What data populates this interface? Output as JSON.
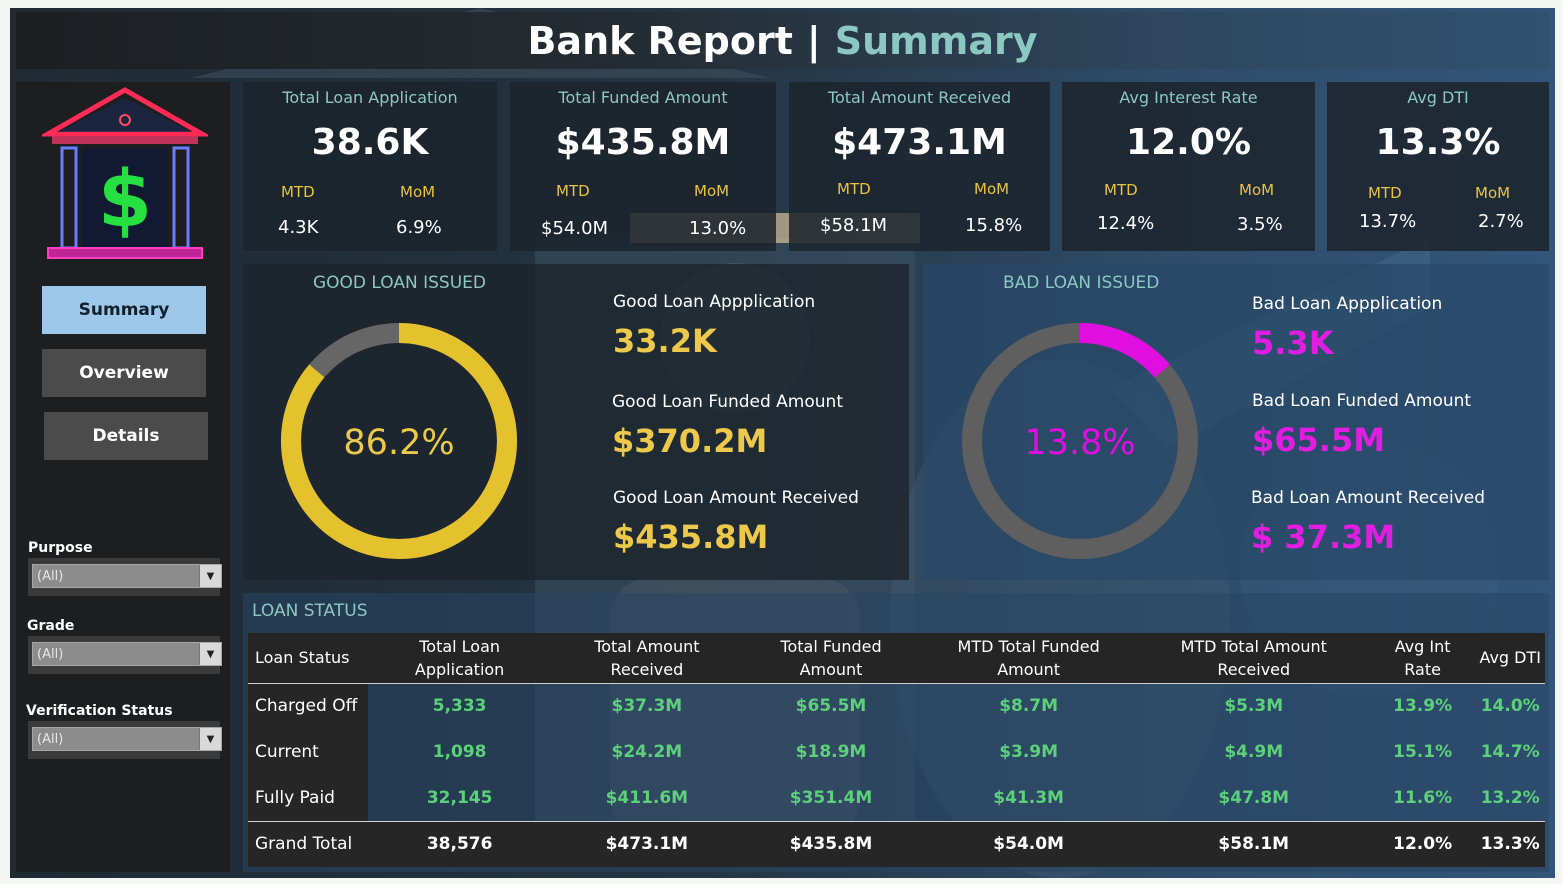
{
  "header": {
    "title": "Bank Report",
    "separator": "|",
    "subtitle": "Summary"
  },
  "sidebar": {
    "logo_icon": "bank-dollar-icon",
    "nav": [
      {
        "label": "Summary",
        "active": true
      },
      {
        "label": "Overview",
        "active": false
      },
      {
        "label": "Details",
        "active": false
      }
    ],
    "filters": [
      {
        "label": "Purpose",
        "value": "(All)"
      },
      {
        "label": "Grade",
        "value": "(All)"
      },
      {
        "label": "Verification Status",
        "value": "(All)"
      }
    ]
  },
  "kpis": [
    {
      "title": "Total Loan Application",
      "value": "38.6K",
      "mtd_label": "MTD",
      "mom_label": "MoM",
      "mtd": "4.3K",
      "mom": "6.9%"
    },
    {
      "title": "Total Funded Amount",
      "value": "$435.8M",
      "mtd_label": "MTD",
      "mom_label": "MoM",
      "mtd": "$54.0M",
      "mom": "13.0%"
    },
    {
      "title": "Total Amount Received",
      "value": "$473.1M",
      "mtd_label": "MTD",
      "mom_label": "MoM",
      "mtd": "$58.1M",
      "mom": "15.8%"
    },
    {
      "title": "Avg Interest Rate",
      "value": "12.0%",
      "mtd_label": "MTD",
      "mom_label": "MoM",
      "mtd": "12.4%",
      "mom": "3.5%"
    },
    {
      "title": "Avg DTI",
      "value": "13.3%",
      "mtd_label": "MTD",
      "mom_label": "MoM",
      "mtd": "13.7%",
      "mom": "2.7%"
    }
  ],
  "good_loan": {
    "title": "GOOD LOAN ISSUED",
    "percent_label": "86.2%",
    "percent": 86.2,
    "application_label": "Good Loan Appplication",
    "application": "33.2K",
    "funded_label": "Good Loan Funded Amount",
    "funded": "$370.2M",
    "received_label": "Good Loan Amount Received",
    "received": "$435.8M",
    "color": "#e4c22e"
  },
  "bad_loan": {
    "title": "BAD LOAN ISSUED",
    "percent_label": "13.8%",
    "percent": 13.8,
    "application_label": "Bad Loan Appplication",
    "application": "5.3K",
    "funded_label": "Bad Loan Funded Amount",
    "funded": "$65.5M",
    "received_label": "Bad Loan Amount Received",
    "received": "$ 37.3M",
    "color": "#e00ee0"
  },
  "loan_status": {
    "title": "LOAN STATUS",
    "columns": [
      "Loan Status",
      "Total Loan Application",
      "Total Amount Received",
      "Total Funded Amount",
      "MTD Total Funded Amount",
      "MTD Total Amount Received",
      "Avg Int Rate",
      "Avg DTI"
    ],
    "rows": [
      [
        "Charged Off",
        "5,333",
        "$37.3M",
        "$65.5M",
        "$8.7M",
        "$5.3M",
        "13.9%",
        "14.0%"
      ],
      [
        "Current",
        "1,098",
        "$24.2M",
        "$18.9M",
        "$3.9M",
        "$4.9M",
        "15.1%",
        "14.7%"
      ],
      [
        "Fully Paid",
        "32,145",
        "$411.6M",
        "$351.4M",
        "$41.3M",
        "$47.8M",
        "11.6%",
        "13.2%"
      ]
    ],
    "total": [
      "Grand Total",
      "38,576",
      "$473.1M",
      "$435.8M",
      "$54.0M",
      "$58.1M",
      "12.0%",
      "13.3%"
    ]
  }
}
